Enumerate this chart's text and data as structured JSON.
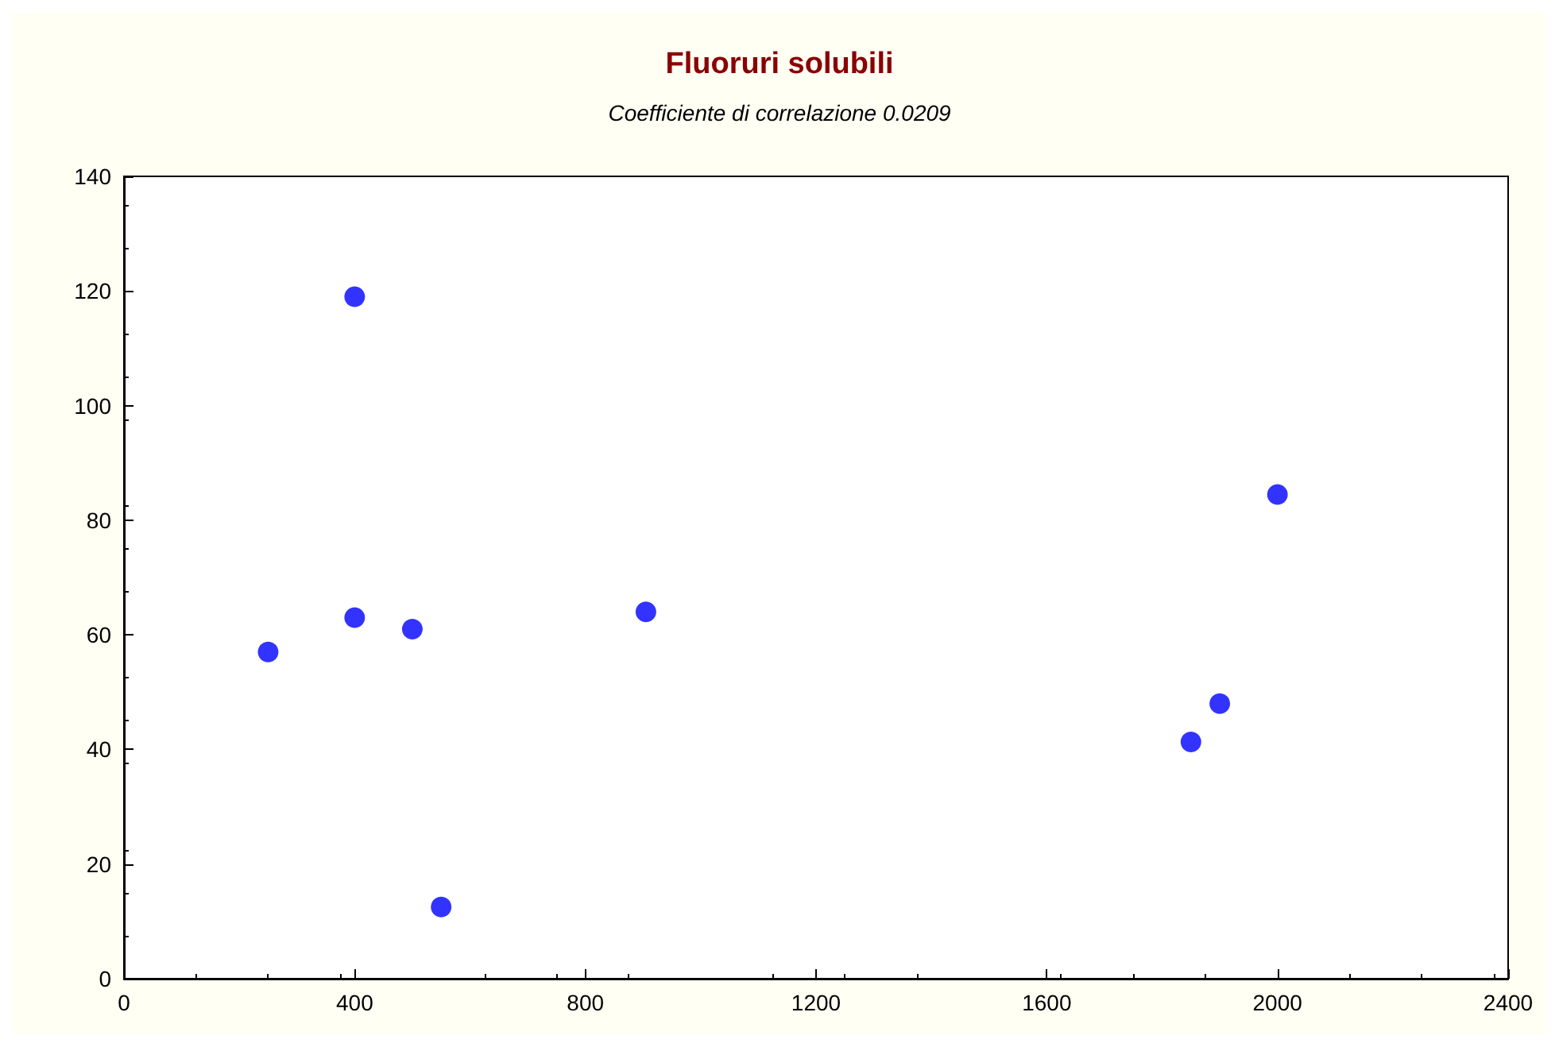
{
  "chart_data": {
    "type": "scatter",
    "title": "Fluoruri solubili",
    "subtitle": "Coefficiente di correlazione 0.0209",
    "x": [
      250,
      400,
      400,
      500,
      550,
      905,
      1850,
      1900,
      2000
    ],
    "series": [
      {
        "color": "#0000ff",
        "values": [
          57,
          119,
          63,
          61,
          12.5,
          64,
          41.3,
          48,
          84.5
        ]
      }
    ],
    "xlim": [
      0,
      2400
    ],
    "xticks": [
      0,
      400,
      800,
      1200,
      1600,
      2000,
      2400
    ],
    "ylim": [
      0,
      140
    ],
    "yticks": [
      0,
      20,
      40,
      60,
      80,
      100,
      120,
      140
    ],
    "marker": "circle",
    "grid": false
  }
}
